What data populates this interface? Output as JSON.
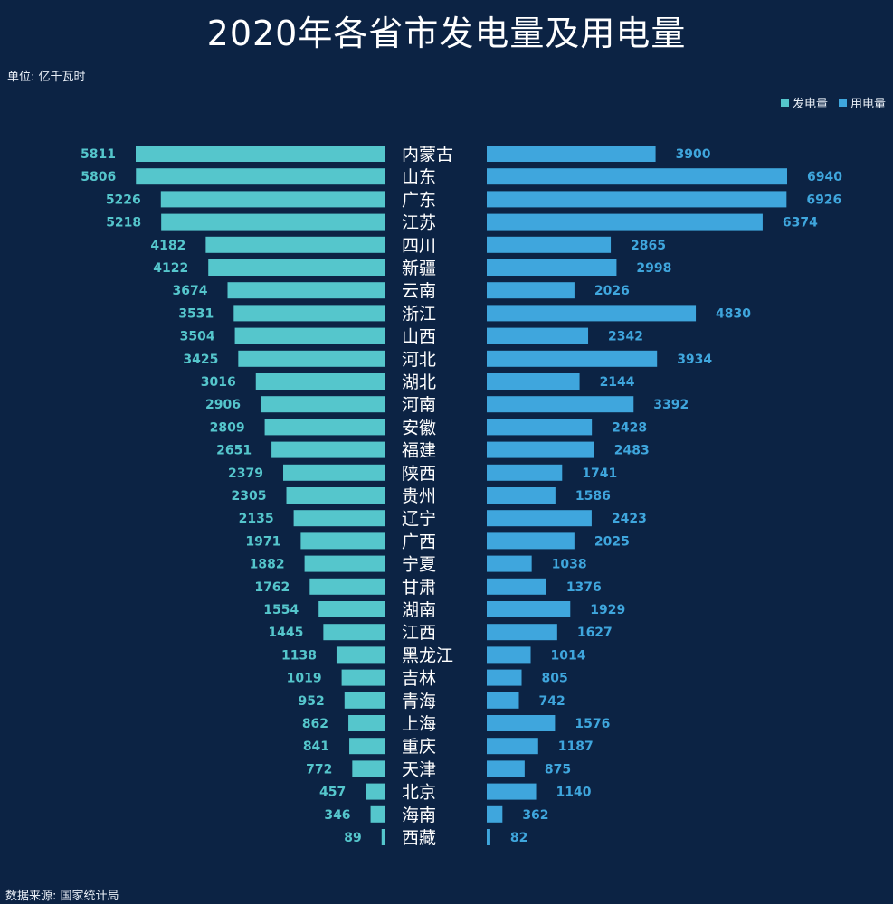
{
  "title": "2020年各省市发电量及用电量",
  "unit_label": "单位: 亿千瓦时",
  "source_label": "数据来源: 国家统计局",
  "colors": {
    "background": "#0c2344",
    "generation": "#55c6cc",
    "consumption": "#3fa6dd",
    "text": "#ffffff"
  },
  "chart_data": {
    "type": "bar",
    "orientation": "horizontal-butterfly",
    "title": "2020年各省市发电量及用电量",
    "unit": "亿千瓦时",
    "legend_position": "top-right",
    "categories": [
      "内蒙古",
      "山东",
      "广东",
      "江苏",
      "四川",
      "新疆",
      "云南",
      "浙江",
      "山西",
      "河北",
      "湖北",
      "河南",
      "安徽",
      "福建",
      "陕西",
      "贵州",
      "辽宁",
      "广西",
      "宁夏",
      "甘肃",
      "湖南",
      "江西",
      "黑龙江",
      "吉林",
      "青海",
      "上海",
      "重庆",
      "天津",
      "北京",
      "海南",
      "西藏"
    ],
    "series": [
      {
        "name": "发电量",
        "color": "#55c6cc",
        "values": [
          5811,
          5806,
          5226,
          5218,
          4182,
          4122,
          3674,
          3531,
          3504,
          3425,
          3016,
          2906,
          2809,
          2651,
          2379,
          2305,
          2135,
          1971,
          1882,
          1762,
          1554,
          1445,
          1138,
          1019,
          952,
          862,
          841,
          772,
          457,
          346,
          89
        ]
      },
      {
        "name": "用电量",
        "color": "#3fa6dd",
        "values": [
          3900,
          6940,
          6926,
          6374,
          2865,
          2998,
          2026,
          4830,
          2342,
          3934,
          2144,
          3392,
          2428,
          2483,
          1741,
          1586,
          2423,
          2025,
          1038,
          1376,
          1929,
          1627,
          1014,
          805,
          742,
          1576,
          1187,
          875,
          1140,
          362,
          82
        ]
      }
    ]
  }
}
